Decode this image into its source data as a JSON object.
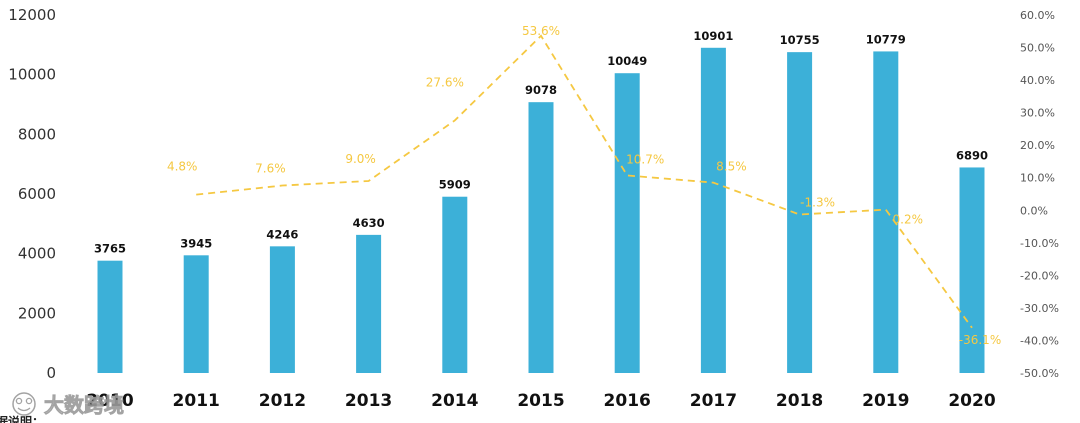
{
  "chart_data": {
    "type": "bar",
    "categories": [
      "2010",
      "2011",
      "2012",
      "2013",
      "2014",
      "2015",
      "2016",
      "2017",
      "2018",
      "2019",
      "2020"
    ],
    "series": [
      {
        "name": "value",
        "type": "bar",
        "color": "#3cb0d8",
        "values": [
          3765,
          3945,
          4246,
          4630,
          5909,
          9078,
          10049,
          10901,
          10755,
          10779,
          6890
        ]
      },
      {
        "name": "growth",
        "type": "line",
        "style": "dashed",
        "axis": "right",
        "color": "#f5c842",
        "values": [
          null,
          4.8,
          7.6,
          9.0,
          27.6,
          53.6,
          10.7,
          8.5,
          -1.3,
          0.2,
          -36.1
        ],
        "labels": [
          "",
          "4.8%",
          "7.6%",
          "9.0%",
          "27.6%",
          "53.6%",
          "10.7%",
          "8.5%",
          "-1.3%",
          "0.2%",
          "-36.1%"
        ]
      }
    ],
    "bar_labels": [
      "3765",
      "3945",
      "4246",
      "4630",
      "5909",
      "9078",
      "10049",
      "10901",
      "10755",
      "10779",
      "6890"
    ],
    "ylim": [
      0,
      12000
    ],
    "y_ticks": [
      "0",
      "2000",
      "4000",
      "6000",
      "8000",
      "10000",
      "12000"
    ],
    "y2lim": [
      -50,
      60
    ],
    "y2_ticks": [
      "-50.0%",
      "-40.0%",
      "-30.0%",
      "-20.0%",
      "-10.0%",
      "0.0%",
      "10.0%",
      "20.0%",
      "30.0%",
      "40.0%",
      "50.0%",
      "60.0%"
    ],
    "title": "",
    "xlabel": "",
    "ylabel": "",
    "grid": false,
    "legend": "none"
  },
  "watermark": {
    "text": "大数跨境"
  },
  "footnote": {
    "text": "据说明："
  }
}
